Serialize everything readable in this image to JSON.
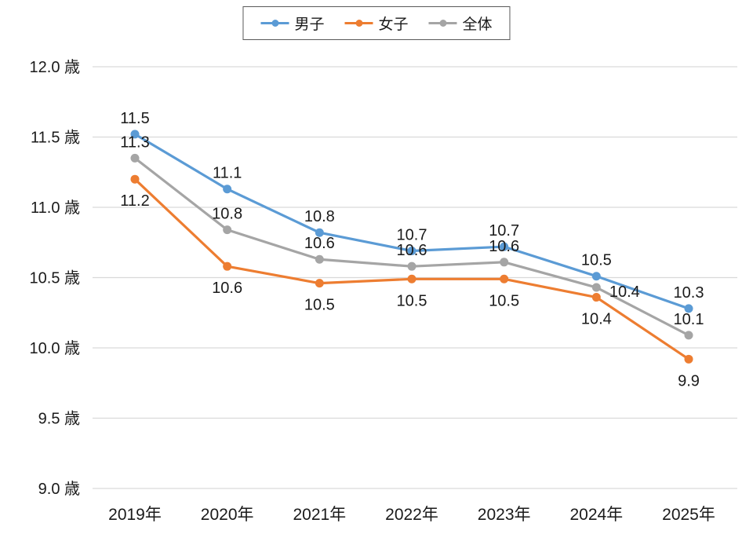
{
  "colors": {
    "background": "#ffffff",
    "gridline": "#d9d9d9",
    "text": "#1a1a1a",
    "legend_border": "#595959"
  },
  "chart_data": {
    "type": "line",
    "x": [
      "2019年",
      "2020年",
      "2021年",
      "2022年",
      "2023年",
      "2024年",
      "2025年"
    ],
    "series": [
      {
        "name": "男子",
        "color": "#5B9BD5",
        "values": [
          11.5,
          11.1,
          10.8,
          10.7,
          10.7,
          10.5,
          10.3
        ],
        "plot_values": [
          11.52,
          11.13,
          10.82,
          10.69,
          10.72,
          10.51,
          10.28
        ],
        "labels": [
          "11.5",
          "11.1",
          "10.8",
          "10.7",
          "10.7",
          "10.5",
          "10.3"
        ],
        "label_side": "above"
      },
      {
        "name": "女子",
        "color": "#ED7D31",
        "values": [
          11.2,
          10.6,
          10.5,
          10.5,
          10.5,
          10.4,
          9.9
        ],
        "plot_values": [
          11.2,
          10.58,
          10.46,
          10.49,
          10.49,
          10.36,
          9.92
        ],
        "labels": [
          "11.2",
          "10.6",
          "10.5",
          "10.5",
          "10.5",
          "10.4",
          "9.9"
        ],
        "label_side": "below"
      },
      {
        "name": "全体",
        "color": "#A5A5A5",
        "values": [
          11.3,
          10.8,
          10.6,
          10.6,
          10.6,
          10.4,
          10.1
        ],
        "plot_values": [
          11.35,
          10.84,
          10.63,
          10.58,
          10.61,
          10.43,
          10.09
        ],
        "labels": [
          "11.3",
          "10.8",
          "10.6",
          "10.6",
          "10.6",
          "10.4",
          "10.1"
        ],
        "label_side": "above",
        "label_overrides": {
          "5": {
            "dx": 36,
            "dy": 12
          }
        }
      }
    ],
    "title": "",
    "xlabel": "",
    "ylabel": "",
    "ylim": [
      9.0,
      12.0
    ],
    "yticks": [
      {
        "value": 12.0,
        "label": "12.0 歳"
      },
      {
        "value": 11.5,
        "label": "11.5 歳"
      },
      {
        "value": 11.0,
        "label": "11.0 歳"
      },
      {
        "value": 10.5,
        "label": "10.5 歳"
      },
      {
        "value": 10.0,
        "label": "10.0 歳"
      },
      {
        "value": 9.5,
        "label": "9.5 歳"
      },
      {
        "value": 9.0,
        "label": "9.0 歳"
      }
    ],
    "grid": true,
    "legend_position": "top-center",
    "data_labels": true
  }
}
